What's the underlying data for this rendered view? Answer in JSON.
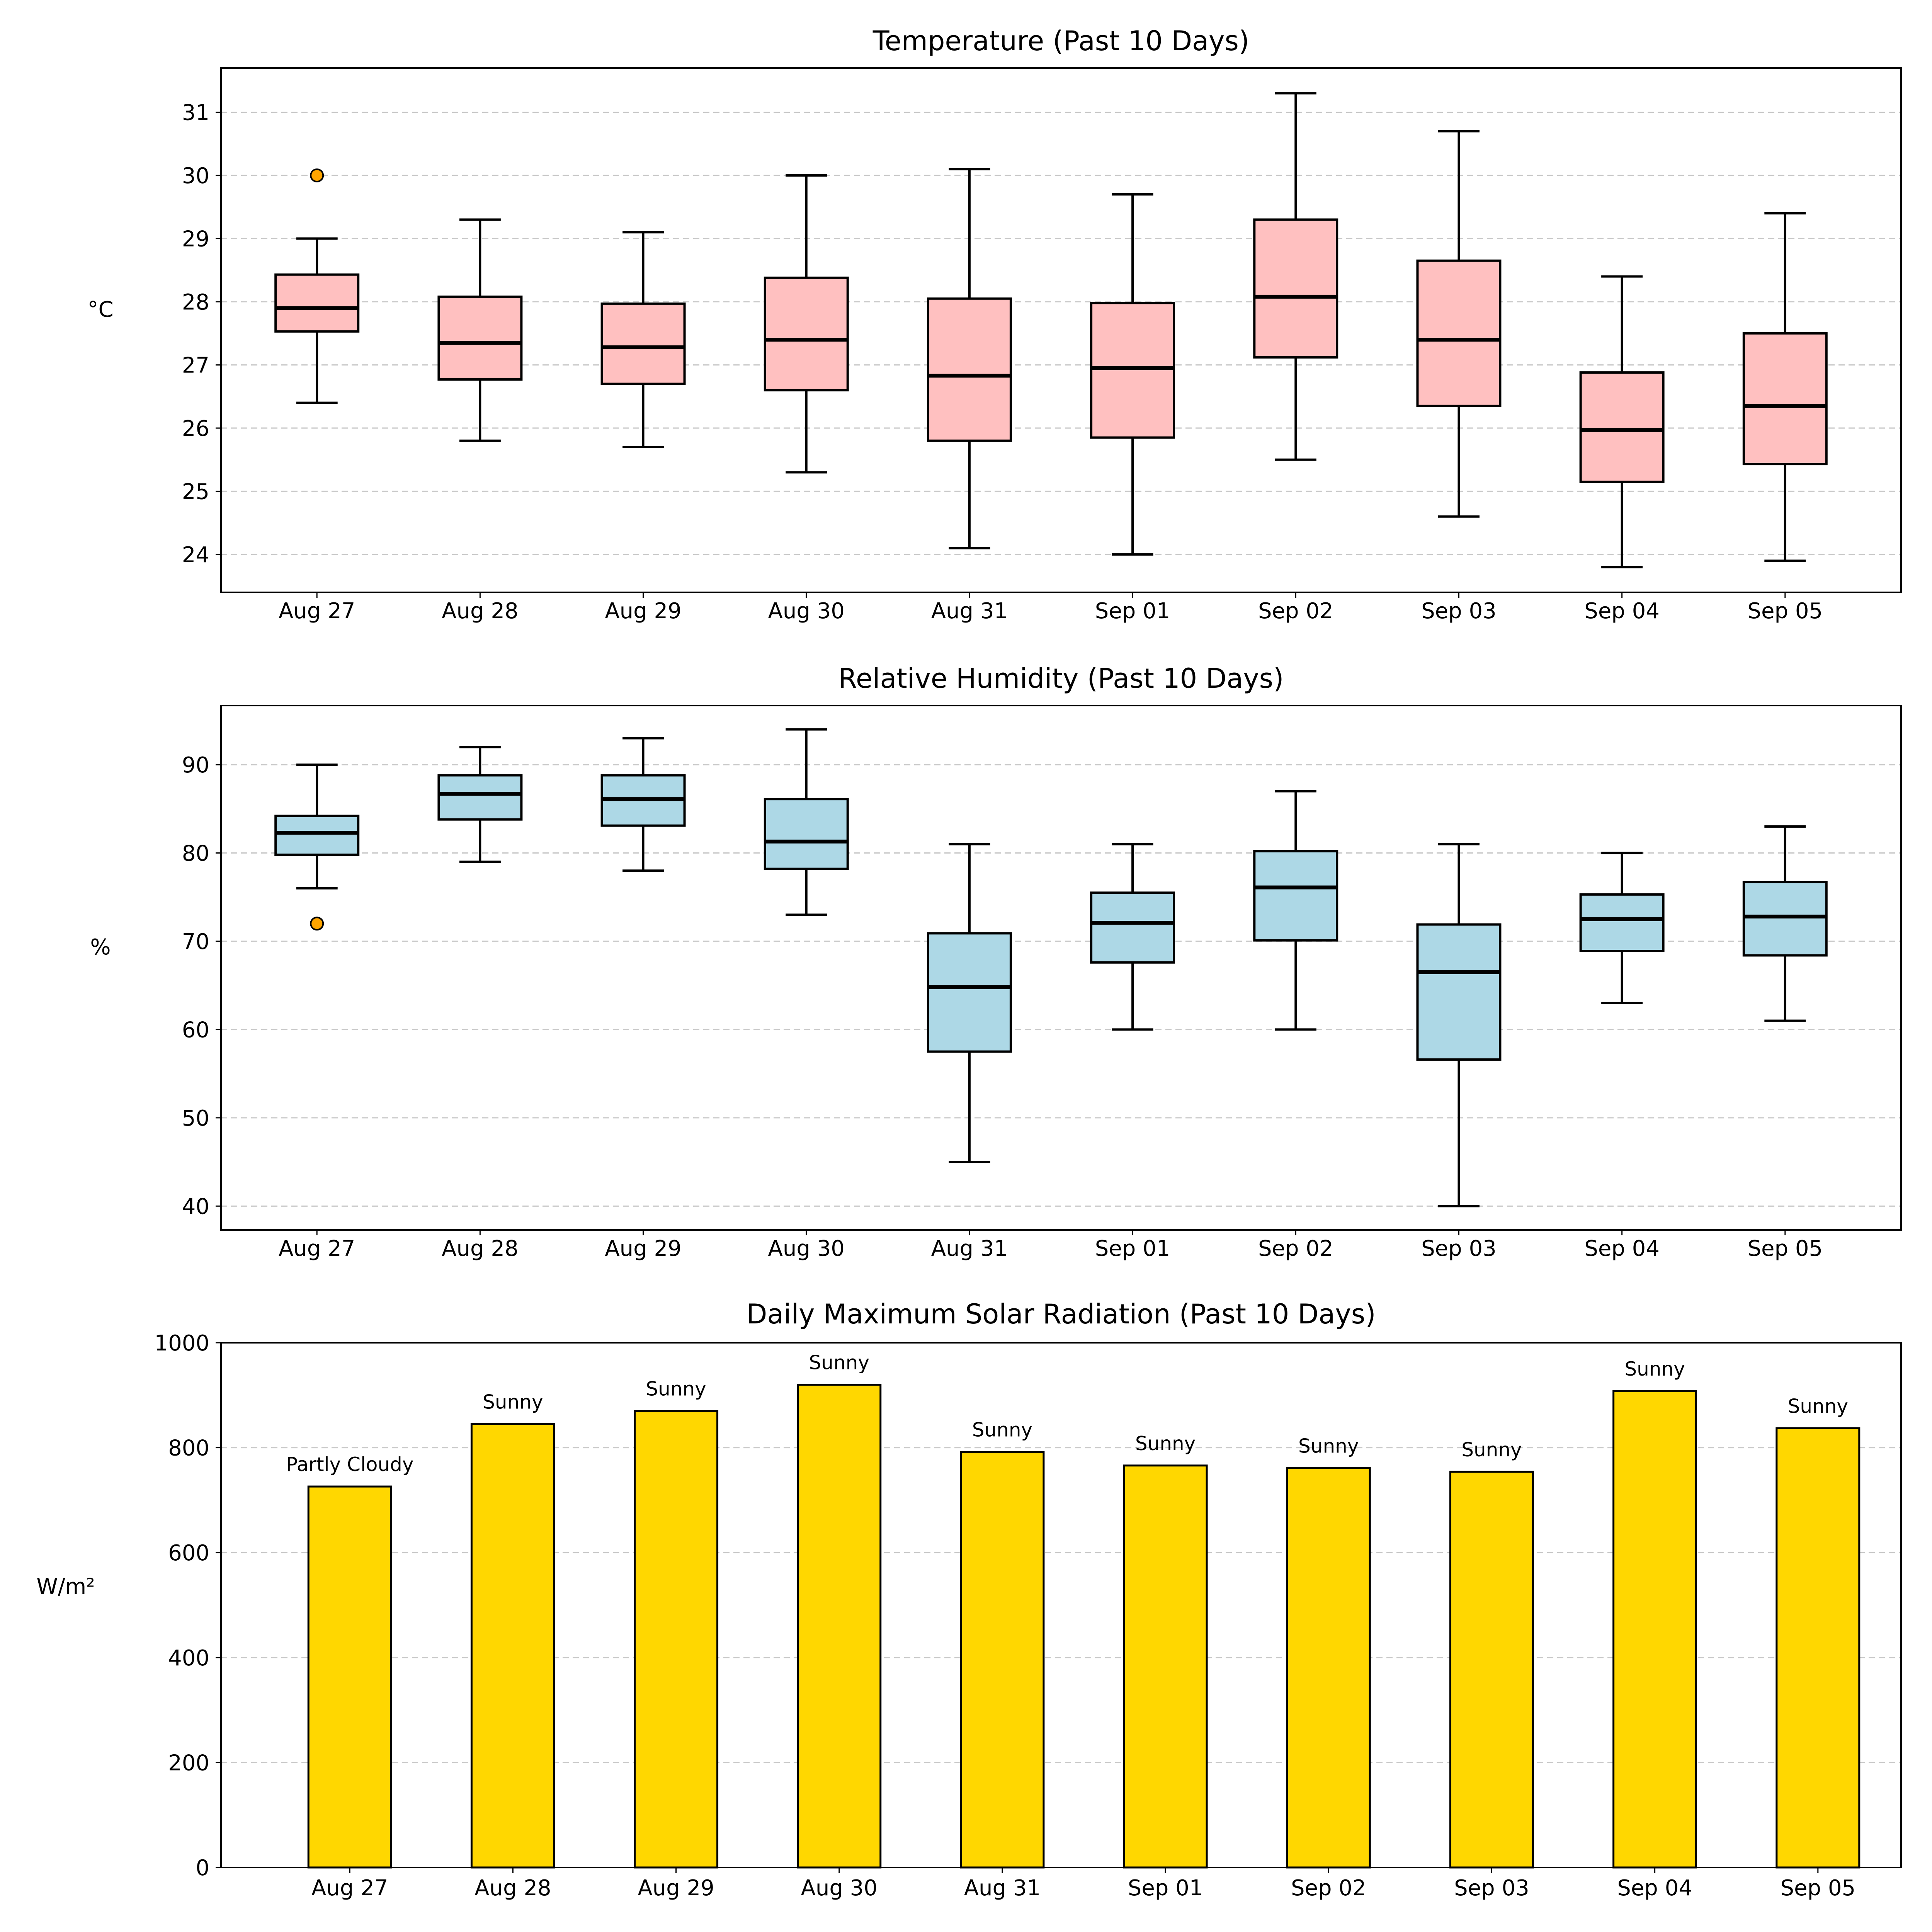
{
  "chart_data": [
    {
      "type": "boxplot",
      "title": "Temperature (Past 10 Days)",
      "ylabel": "°C",
      "ylim": [
        23.4,
        31.7
      ],
      "yticks": [
        24,
        25,
        26,
        27,
        28,
        29,
        30,
        31
      ],
      "grid": "y-dashed",
      "box_color": "#ffc0c0",
      "categories": [
        "Aug 27",
        "Aug 28",
        "Aug 29",
        "Aug 30",
        "Aug 31",
        "Sep 01",
        "Sep 02",
        "Sep 03",
        "Sep 04",
        "Sep 05"
      ],
      "boxes": [
        {
          "whislo": 26.4,
          "q1": 27.53,
          "med": 27.9,
          "q3": 28.43,
          "whishi": 29.0,
          "fliers": [
            30.0
          ]
        },
        {
          "whislo": 25.8,
          "q1": 26.77,
          "med": 27.35,
          "q3": 28.08,
          "whishi": 29.3,
          "fliers": []
        },
        {
          "whislo": 25.7,
          "q1": 26.7,
          "med": 27.28,
          "q3": 27.97,
          "whishi": 29.1,
          "fliers": []
        },
        {
          "whislo": 25.3,
          "q1": 26.6,
          "med": 27.4,
          "q3": 28.38,
          "whishi": 30.0,
          "fliers": []
        },
        {
          "whislo": 24.1,
          "q1": 25.8,
          "med": 26.83,
          "q3": 28.05,
          "whishi": 30.1,
          "fliers": []
        },
        {
          "whislo": 24.0,
          "q1": 25.85,
          "med": 26.95,
          "q3": 27.98,
          "whishi": 29.7,
          "fliers": []
        },
        {
          "whislo": 25.5,
          "q1": 27.12,
          "med": 28.08,
          "q3": 29.3,
          "whishi": 31.3,
          "fliers": []
        },
        {
          "whislo": 24.6,
          "q1": 26.35,
          "med": 27.4,
          "q3": 28.65,
          "whishi": 30.7,
          "fliers": []
        },
        {
          "whislo": 23.8,
          "q1": 25.15,
          "med": 25.97,
          "q3": 26.88,
          "whishi": 28.4,
          "fliers": []
        },
        {
          "whislo": 23.9,
          "q1": 25.43,
          "med": 26.35,
          "q3": 27.5,
          "whishi": 29.4,
          "fliers": []
        }
      ],
      "flier_color": "#ffa500"
    },
    {
      "type": "boxplot",
      "title": "Relative Humidity (Past 10 Days)",
      "ylabel": "%",
      "ylim": [
        37.3,
        96.7
      ],
      "yticks": [
        40,
        50,
        60,
        70,
        80,
        90
      ],
      "grid": "y-dashed",
      "box_color": "#add8e6",
      "categories": [
        "Aug 27",
        "Aug 28",
        "Aug 29",
        "Aug 30",
        "Aug 31",
        "Sep 01",
        "Sep 02",
        "Sep 03",
        "Sep 04",
        "Sep 05"
      ],
      "boxes": [
        {
          "whislo": 76,
          "q1": 79.8,
          "med": 82.3,
          "q3": 84.2,
          "whishi": 90,
          "fliers": [
            72
          ]
        },
        {
          "whislo": 79,
          "q1": 83.8,
          "med": 86.7,
          "q3": 88.8,
          "whishi": 92,
          "fliers": []
        },
        {
          "whislo": 78,
          "q1": 83.1,
          "med": 86.1,
          "q3": 88.8,
          "whishi": 93,
          "fliers": []
        },
        {
          "whislo": 73,
          "q1": 78.2,
          "med": 81.3,
          "q3": 86.1,
          "whishi": 94,
          "fliers": []
        },
        {
          "whislo": 45,
          "q1": 57.5,
          "med": 64.8,
          "q3": 70.9,
          "whishi": 81,
          "fliers": []
        },
        {
          "whislo": 60,
          "q1": 67.6,
          "med": 72.1,
          "q3": 75.5,
          "whishi": 81,
          "fliers": []
        },
        {
          "whislo": 60,
          "q1": 70.1,
          "med": 76.1,
          "q3": 80.2,
          "whishi": 87,
          "fliers": []
        },
        {
          "whislo": 40,
          "q1": 56.6,
          "med": 66.5,
          "q3": 71.9,
          "whishi": 81,
          "fliers": []
        },
        {
          "whislo": 63,
          "q1": 68.9,
          "med": 72.5,
          "q3": 75.3,
          "whishi": 80,
          "fliers": []
        },
        {
          "whislo": 61,
          "q1": 68.4,
          "med": 72.8,
          "q3": 76.7,
          "whishi": 83,
          "fliers": []
        }
      ],
      "flier_color": "#ffa500"
    },
    {
      "type": "bar",
      "title": "Daily Maximum Solar Radiation (Past 10 Days)",
      "ylabel": "W/m²",
      "ylim": [
        0,
        1000
      ],
      "yticks": [
        0,
        200,
        400,
        600,
        800,
        1000
      ],
      "grid": "y-dashed",
      "bar_color": "#ffd700",
      "categories": [
        "Aug 27",
        "Aug 28",
        "Aug 29",
        "Aug 30",
        "Aug 31",
        "Sep 01",
        "Sep 02",
        "Sep 03",
        "Sep 04",
        "Sep 05"
      ],
      "values": [
        726,
        845,
        870,
        920,
        792,
        766,
        761,
        754,
        908,
        837
      ],
      "weather_labels": [
        "Partly Cloudy",
        "Sunny",
        "Sunny",
        "Sunny",
        "Sunny",
        "Sunny",
        "Sunny",
        "Sunny",
        "Sunny",
        "Sunny"
      ]
    }
  ]
}
